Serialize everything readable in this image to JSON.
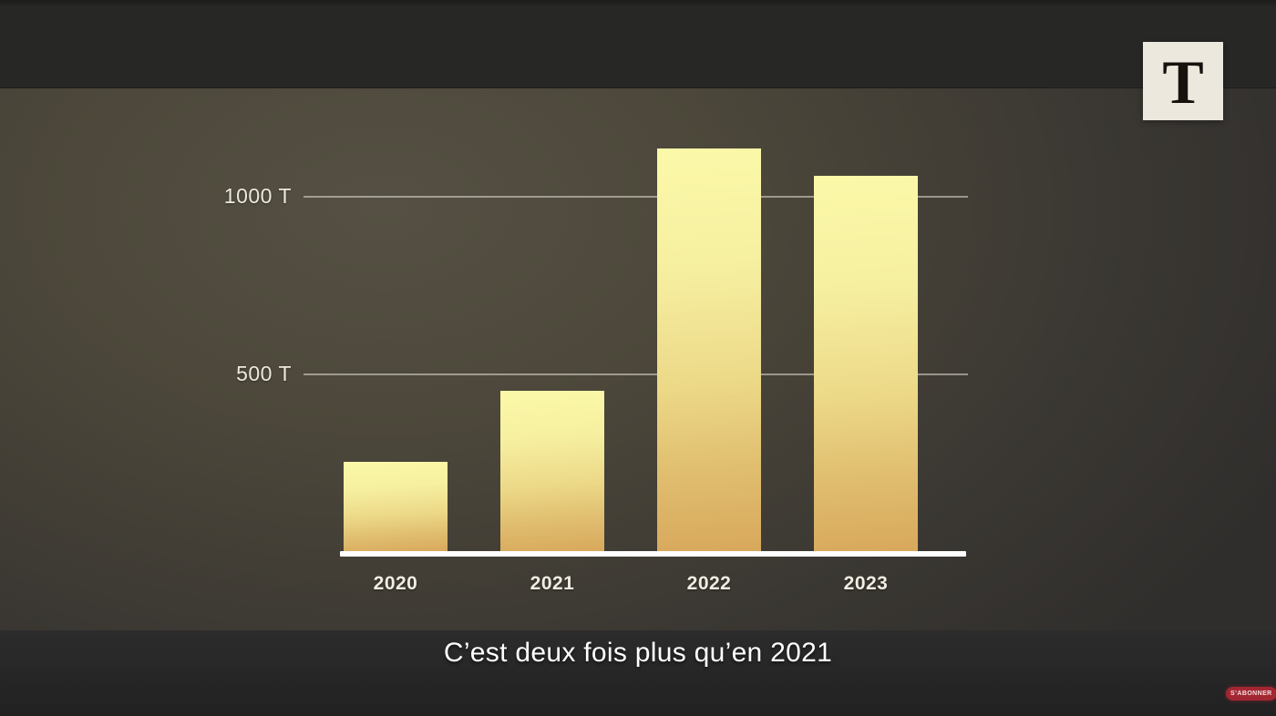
{
  "channel": {
    "logo_letter": "T"
  },
  "caption": {
    "text": "C’est deux fois plus qu’en 2021"
  },
  "subscribe_badge": {
    "label": "S’ABONNER"
  },
  "chart_data": {
    "type": "bar",
    "title": "",
    "categories": [
      "2020",
      "2021",
      "2022",
      "2023"
    ],
    "values": [
      255,
      455,
      1135,
      1060
    ],
    "unit": "T",
    "xlabel": "",
    "ylabel": "",
    "ylim": [
      0,
      1290
    ],
    "yticks": [
      {
        "value": 500,
        "label": "500 T"
      },
      {
        "value": 1000,
        "label": "1000 T"
      }
    ],
    "grid": "horizontal",
    "legend_position": "none",
    "bar_color_top": "#fbf9a9",
    "bar_color_bottom": "#d8a85c",
    "gridline_color": "rgba(228,223,211,0.55)",
    "axis_line_color": "#ffffff",
    "label_color": "#f1ede2"
  }
}
